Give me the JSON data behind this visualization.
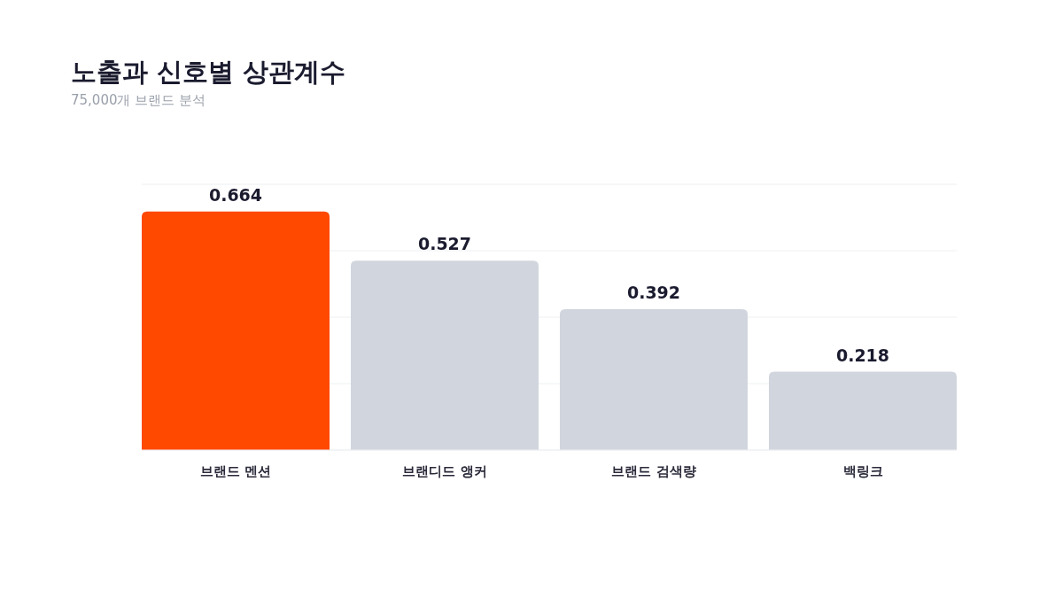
{
  "chart_data": {
    "type": "bar",
    "title": "노출과 신호별 상관계수",
    "subtitle": "75,000개 브랜드 분석",
    "categories": [
      "브랜드 멘션",
      "브랜디드 앵커",
      "브랜드 검색량",
      "백링크"
    ],
    "values": [
      0.664,
      0.527,
      0.392,
      0.218
    ],
    "colors": [
      "#ff4800",
      "#d1d5dd",
      "#d1d5dd",
      "#d1d5dd"
    ],
    "ylim": [
      0,
      0.74
    ],
    "yticks": [
      {
        "value": 0,
        "label": null
      },
      {
        "value": 0.185,
        "label": null
      },
      {
        "value": 0.37,
        "label": null
      },
      {
        "value": 0.555,
        "label": null
      },
      {
        "value": 0.74,
        "label": null
      }
    ],
    "tick_labels": "x",
    "grid": "y",
    "data_labels": true
  }
}
